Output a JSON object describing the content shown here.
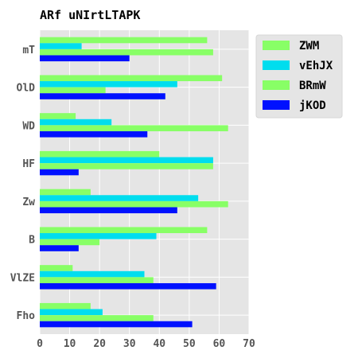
{
  "chart_data": {
    "type": "bar",
    "orientation": "horizontal",
    "title": "ARf uNIrtLTAPK",
    "xlabel": "",
    "ylabel": "",
    "xlim": [
      0,
      70
    ],
    "xticks": [
      "0",
      "10",
      "20",
      "30",
      "40",
      "50",
      "60",
      "70"
    ],
    "grid": true,
    "legend_position": "top-right",
    "categories": [
      "mT",
      "OlD",
      "WD",
      "HF",
      "Zw",
      "B",
      "VlZE",
      "Fho"
    ],
    "series": [
      {
        "name": "ZWM",
        "color": "#88ff66",
        "values": [
          56,
          61,
          12,
          40,
          17,
          56,
          11,
          17
        ]
      },
      {
        "name": "vEhJX",
        "color": "#00ddee",
        "values": [
          14,
          46,
          24,
          58,
          53,
          39,
          35,
          21
        ]
      },
      {
        "name": "BRmW",
        "color": "#88ff66",
        "values": [
          58,
          22,
          63,
          58,
          63,
          20,
          38,
          38
        ]
      },
      {
        "name": "jKOD",
        "color": "#0011ff",
        "values": [
          30,
          42,
          36,
          13,
          46,
          13,
          59,
          51
        ]
      }
    ]
  }
}
